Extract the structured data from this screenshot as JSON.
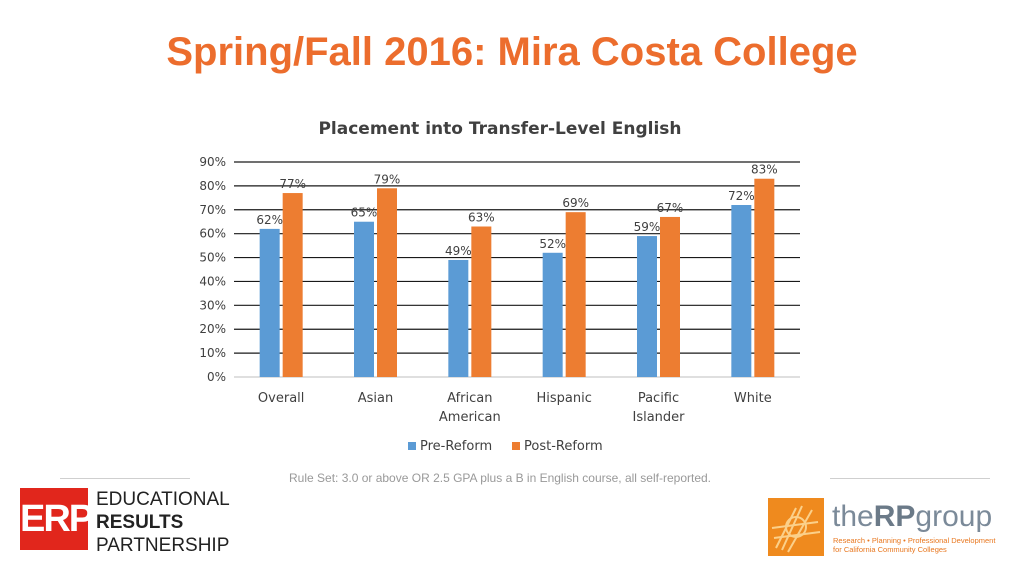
{
  "slide": {
    "title": "Spring/Fall 2016: Mira Costa College",
    "footnote": "Rule Set: 3.0 or above OR 2.5 GPA plus a B in English course, all self-reported."
  },
  "logos": {
    "erp": {
      "mark": "ERP",
      "line1": "EDUCATIONAL",
      "line2": "RESULTS",
      "line3": "PARTNERSHIP"
    },
    "rp": {
      "name_pre": "the",
      "name_bold": "RP",
      "name_post": "group",
      "tagline1": "Research • Planning • Professional Development",
      "tagline2": "for California Community Colleges"
    }
  },
  "chart_data": {
    "type": "bar",
    "title": "Placement into Transfer-Level English",
    "categories": [
      [
        "Overall"
      ],
      [
        "Asian"
      ],
      [
        "African",
        "American"
      ],
      [
        "Hispanic"
      ],
      [
        "Pacific",
        "Islander"
      ],
      [
        "White"
      ]
    ],
    "series": [
      {
        "name": "Pre-Reform",
        "values": [
          62,
          65,
          49,
          52,
          59,
          72
        ],
        "color": "#5b9bd5"
      },
      {
        "name": "Post-Reform",
        "values": [
          77,
          79,
          63,
          69,
          67,
          83
        ],
        "color": "#ed7d31"
      }
    ],
    "ylim": [
      0,
      90
    ],
    "yticks": [
      0,
      10,
      20,
      30,
      40,
      50,
      60,
      70,
      80,
      90
    ],
    "value_suffix": "%",
    "grid": true,
    "legend_position": "bottom"
  }
}
